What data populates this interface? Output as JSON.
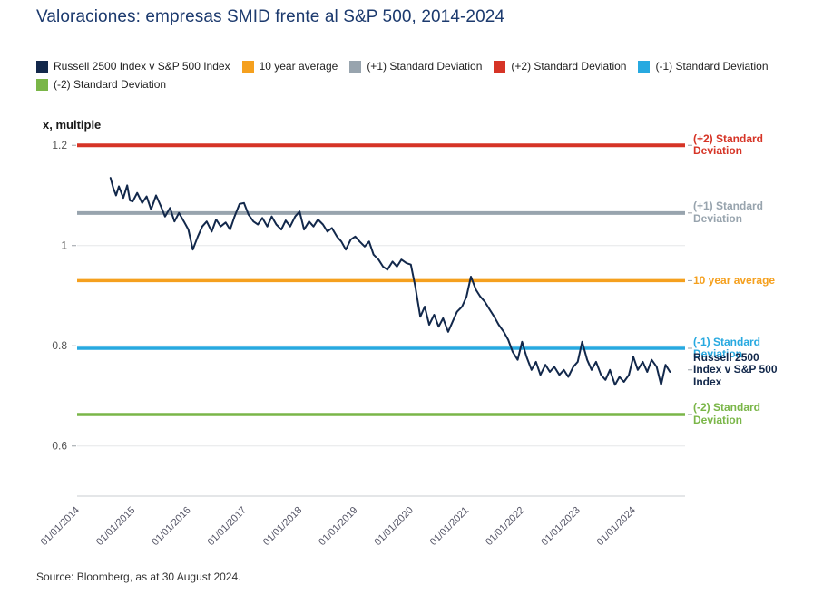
{
  "title": "Valoraciones: empresas SMID frente al S&P 500, 2014-2024",
  "source": "Source: Bloomberg, as at 30 August 2024.",
  "legend": [
    {
      "label": "Russell 2500 Index v S&P 500 Index",
      "color": "#12284b"
    },
    {
      "label": "10 year average",
      "color": "#f5a01e"
    },
    {
      "label": "(+1) Standard Deviation",
      "color": "#98a4ae"
    },
    {
      "label": "(+2) Standard Deviation",
      "color": "#d63426"
    },
    {
      "label": "(-1) Standard Deviation",
      "color": "#27a9e0"
    },
    {
      "label": "(-2) Standard Deviation",
      "color": "#7ab648"
    }
  ],
  "annotations": [
    {
      "id": "plus-2-sd",
      "text": "(+2) Standard Deviation",
      "value": 1.2,
      "color": "#d63426"
    },
    {
      "id": "plus-1-sd",
      "text": "(+1) Standard Deviation",
      "value": 1.065,
      "color": "#98a4ae"
    },
    {
      "id": "10-year-average",
      "text": "10 year average",
      "value": 0.93,
      "color": "#f5a01e"
    },
    {
      "id": "minus-1-sd",
      "text": "(-1) Standard Deviation",
      "value": 0.795,
      "color": "#27a9e0"
    },
    {
      "id": "russell-2500",
      "text": "Russell 2500 Index v S&P 500 Index",
      "value": 0.752,
      "color": "#12284b"
    },
    {
      "id": "minus-2-sd",
      "text": "(-2) Standard Deviation",
      "value": 0.663,
      "color": "#7ab648"
    }
  ],
  "chart_data": {
    "type": "line",
    "title": "Valoraciones: empresas SMID frente al S&P 500, 2014-2024",
    "xlabel": "",
    "ylabel": "x, multiple",
    "grid": true,
    "legend_position": "top",
    "xlim": [
      2014.0,
      2024.93
    ],
    "ylim": [
      0.5,
      1.233
    ],
    "y_ticks": [
      {
        "value": 0.6,
        "label": "0.6"
      },
      {
        "value": 0.8,
        "label": "0.8"
      },
      {
        "value": 1.0,
        "label": "1"
      },
      {
        "value": 1.2,
        "label": "1.2"
      }
    ],
    "x_ticks": [
      {
        "value": 2014,
        "label": "01/01/2014"
      },
      {
        "value": 2015,
        "label": "01/01/2015"
      },
      {
        "value": 2016,
        "label": "01/01/2016"
      },
      {
        "value": 2017,
        "label": "01/01/2017"
      },
      {
        "value": 2018,
        "label": "01/01/2018"
      },
      {
        "value": 2019,
        "label": "01/01/2019"
      },
      {
        "value": 2020,
        "label": "01/01/2020"
      },
      {
        "value": 2021,
        "label": "01/01/2021"
      },
      {
        "value": 2022,
        "label": "01/01/2022"
      },
      {
        "value": 2023,
        "label": "01/01/2023"
      },
      {
        "value": 2024,
        "label": "01/01/2024"
      }
    ],
    "reference_lines": [
      {
        "name": "(+2) Standard Deviation",
        "value": 1.2,
        "color": "#d63426",
        "width": 4
      },
      {
        "name": "(+1) Standard Deviation",
        "value": 1.065,
        "color": "#98a4ae",
        "width": 4
      },
      {
        "name": "10 year average",
        "value": 0.93,
        "color": "#f5a01e",
        "width": 3.5
      },
      {
        "name": "(-1) Standard Deviation",
        "value": 0.795,
        "color": "#27a9e0",
        "width": 3.5
      },
      {
        "name": "(-2) Standard Deviation",
        "value": 0.663,
        "color": "#7ab648",
        "width": 3.5
      }
    ],
    "series": [
      {
        "name": "Russell 2500 Index v S&P 500 Index",
        "color": "#12284b",
        "x": [
          2014.6,
          2014.65,
          2014.7,
          2014.75,
          2014.83,
          2014.9,
          2014.95,
          2015.0,
          2015.08,
          2015.17,
          2015.25,
          2015.33,
          2015.42,
          2015.5,
          2015.58,
          2015.67,
          2015.75,
          2015.83,
          2015.92,
          2016.0,
          2016.08,
          2016.17,
          2016.25,
          2016.33,
          2016.42,
          2016.5,
          2016.58,
          2016.67,
          2016.75,
          2016.83,
          2016.92,
          2017.0,
          2017.08,
          2017.17,
          2017.25,
          2017.33,
          2017.42,
          2017.5,
          2017.58,
          2017.67,
          2017.75,
          2017.83,
          2017.92,
          2018.0,
          2018.08,
          2018.17,
          2018.25,
          2018.33,
          2018.42,
          2018.5,
          2018.58,
          2018.67,
          2018.75,
          2018.83,
          2018.92,
          2019.0,
          2019.08,
          2019.17,
          2019.25,
          2019.33,
          2019.42,
          2019.5,
          2019.58,
          2019.67,
          2019.75,
          2019.83,
          2019.92,
          2020.0,
          2020.08,
          2020.17,
          2020.25,
          2020.33,
          2020.42,
          2020.5,
          2020.58,
          2020.67,
          2020.75,
          2020.83,
          2020.92,
          2021.0,
          2021.08,
          2021.17,
          2021.25,
          2021.33,
          2021.42,
          2021.5,
          2021.58,
          2021.67,
          2021.75,
          2021.83,
          2021.92,
          2022.0,
          2022.08,
          2022.17,
          2022.25,
          2022.33,
          2022.42,
          2022.5,
          2022.58,
          2022.67,
          2022.75,
          2022.83,
          2022.92,
          2023.0,
          2023.08,
          2023.17,
          2023.25,
          2023.33,
          2023.42,
          2023.5,
          2023.58,
          2023.67,
          2023.75,
          2023.83,
          2023.92,
          2024.0,
          2024.08,
          2024.17,
          2024.25,
          2024.33,
          2024.42,
          2024.5,
          2024.58,
          2024.66
        ],
        "y": [
          1.135,
          1.115,
          1.1,
          1.118,
          1.095,
          1.12,
          1.09,
          1.088,
          1.105,
          1.085,
          1.098,
          1.072,
          1.1,
          1.08,
          1.058,
          1.075,
          1.048,
          1.065,
          1.048,
          1.032,
          0.992,
          1.018,
          1.038,
          1.048,
          1.028,
          1.052,
          1.038,
          1.046,
          1.032,
          1.058,
          1.083,
          1.085,
          1.062,
          1.048,
          1.042,
          1.055,
          1.038,
          1.058,
          1.042,
          1.032,
          1.05,
          1.038,
          1.058,
          1.068,
          1.032,
          1.048,
          1.038,
          1.052,
          1.042,
          1.028,
          1.035,
          1.018,
          1.008,
          0.992,
          1.012,
          1.018,
          1.008,
          0.998,
          1.008,
          0.982,
          0.972,
          0.958,
          0.952,
          0.968,
          0.958,
          0.972,
          0.965,
          0.962,
          0.918,
          0.858,
          0.878,
          0.842,
          0.862,
          0.838,
          0.855,
          0.828,
          0.848,
          0.868,
          0.878,
          0.898,
          0.938,
          0.912,
          0.898,
          0.888,
          0.872,
          0.858,
          0.842,
          0.828,
          0.812,
          0.788,
          0.772,
          0.808,
          0.778,
          0.752,
          0.768,
          0.742,
          0.762,
          0.748,
          0.758,
          0.742,
          0.752,
          0.738,
          0.758,
          0.768,
          0.808,
          0.772,
          0.752,
          0.768,
          0.742,
          0.732,
          0.752,
          0.722,
          0.738,
          0.728,
          0.742,
          0.778,
          0.752,
          0.768,
          0.748,
          0.772,
          0.758,
          0.722,
          0.762,
          0.748
        ]
      }
    ]
  }
}
